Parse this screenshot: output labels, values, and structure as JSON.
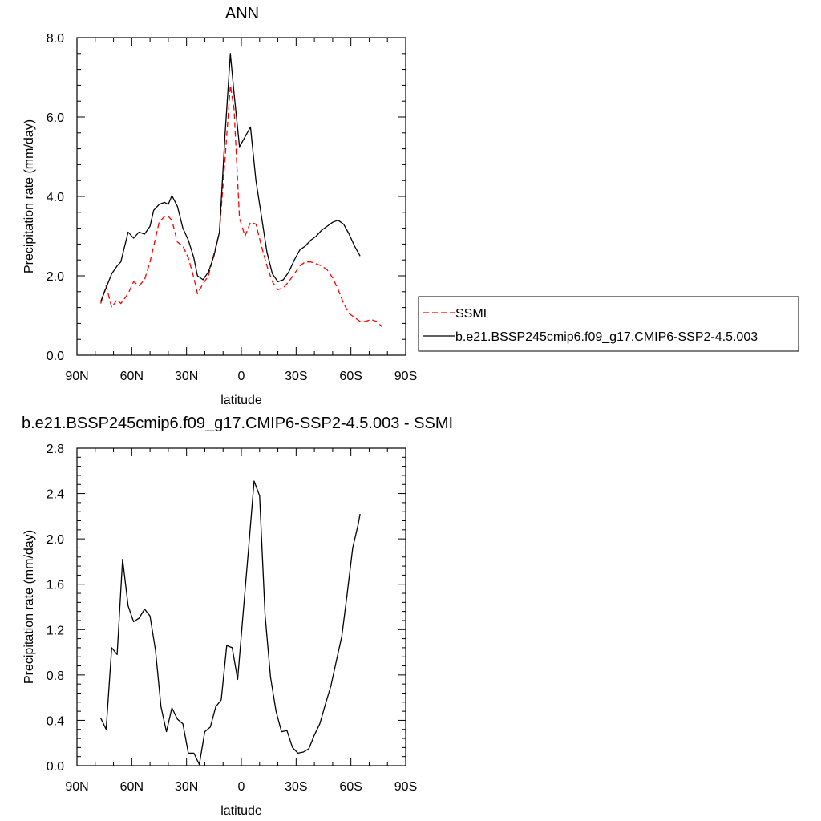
{
  "chart_data": [
    {
      "type": "line",
      "title": "ANN",
      "xlabel": "latitude",
      "ylabel": "Precipitation rate (mm/day)",
      "xlim": [
        90,
        -90
      ],
      "ylim": [
        0,
        8
      ],
      "xticks": [
        90,
        60,
        30,
        0,
        -30,
        -60,
        -90
      ],
      "xtick_labels": [
        "90N",
        "60N",
        "30N",
        "0",
        "30S",
        "60S",
        "90S"
      ],
      "yticks": [
        0,
        2,
        4,
        6,
        8
      ],
      "ytick_labels": [
        "0.0",
        "2.0",
        "4.0",
        "6.0",
        "8.0"
      ],
      "grid": false,
      "legend_position": "right",
      "series": [
        {
          "name": "SSMI",
          "color": "#ff0000",
          "dash": "dashed",
          "x": [
            77,
            74,
            71,
            68,
            66,
            62,
            59,
            56,
            53,
            50,
            48,
            45,
            42,
            40,
            38,
            35,
            32,
            29,
            26,
            24,
            21,
            18,
            15,
            12,
            9,
            6,
            4,
            1,
            -2,
            -5,
            -8,
            -11,
            -14,
            -17,
            -20,
            -23,
            -26,
            -29,
            -32,
            -35,
            -38,
            -41,
            -44,
            -47,
            -50,
            -53,
            -56,
            -59,
            -62,
            -65,
            -68,
            -71,
            -74,
            -77
          ],
          "y": [
            1.3,
            1.75,
            1.2,
            1.4,
            1.3,
            1.55,
            1.85,
            1.75,
            1.9,
            2.35,
            2.75,
            3.35,
            3.5,
            3.5,
            3.4,
            2.85,
            2.75,
            2.45,
            1.95,
            1.55,
            1.8,
            2.0,
            2.55,
            3.1,
            4.9,
            6.8,
            6.2,
            3.45,
            3.0,
            3.35,
            3.3,
            2.75,
            2.25,
            1.85,
            1.65,
            1.7,
            1.85,
            2.05,
            2.25,
            2.35,
            2.35,
            2.3,
            2.25,
            2.15,
            1.95,
            1.65,
            1.3,
            1.05,
            0.95,
            0.85,
            0.85,
            0.9,
            0.85,
            0.72
          ]
        },
        {
          "name": "b.e21.BSSP245cmip6.f09_g17.CMIP6-SSP2-4.5.003",
          "color": "#000000",
          "dash": "solid",
          "x": [
            77,
            74,
            71,
            68,
            66,
            62,
            59,
            56,
            53,
            50,
            48,
            45,
            42,
            40,
            38,
            35,
            32,
            29,
            26,
            24,
            21,
            18,
            15,
            12,
            9,
            6,
            4,
            1,
            -2,
            -5,
            -8,
            -11,
            -14,
            -17,
            -20,
            -23,
            -26,
            -29,
            -32,
            -35,
            -38,
            -41,
            -44,
            -47,
            -50,
            -53,
            -56,
            -59,
            -62,
            -65
          ],
          "y": [
            1.35,
            1.7,
            2.05,
            2.25,
            2.35,
            3.1,
            2.95,
            3.1,
            3.05,
            3.25,
            3.65,
            3.8,
            3.85,
            3.8,
            4.02,
            3.75,
            3.2,
            2.9,
            2.45,
            2.0,
            1.9,
            2.1,
            2.5,
            3.1,
            5.5,
            7.6,
            6.6,
            5.25,
            5.5,
            5.75,
            4.4,
            3.5,
            2.6,
            2.05,
            1.85,
            1.9,
            2.1,
            2.4,
            2.65,
            2.75,
            2.9,
            3.0,
            3.15,
            3.25,
            3.35,
            3.4,
            3.3,
            3.05,
            2.75,
            2.5
          ]
        }
      ]
    },
    {
      "type": "line",
      "title": "b.e21.BSSP245cmip6.f09_g17.CMIP6-SSP2-4.5.003 - SSMI",
      "xlabel": "latitude",
      "ylabel": "Precipitation rate (mm/day)",
      "xlim": [
        90,
        -90
      ],
      "ylim": [
        0,
        2.8
      ],
      "xticks": [
        90,
        60,
        30,
        0,
        -30,
        -60,
        -90
      ],
      "xtick_labels": [
        "90N",
        "60N",
        "30N",
        "0",
        "30S",
        "60S",
        "90S"
      ],
      "yticks": [
        0,
        0.4,
        0.8,
        1.2,
        1.6,
        2.0,
        2.4,
        2.8
      ],
      "ytick_labels": [
        "0.0",
        "0.4",
        "0.8",
        "1.2",
        "1.6",
        "2.0",
        "2.4",
        "2.8"
      ],
      "grid": false,
      "series": [
        {
          "color": "#000000",
          "dash": "solid",
          "x": [
            77,
            74,
            71,
            68,
            65,
            62,
            59,
            56,
            53,
            50,
            47,
            44,
            41,
            38,
            35,
            32,
            29,
            26,
            23,
            20,
            17,
            14,
            11,
            8,
            5,
            2,
            -1,
            -4,
            -7,
            -10,
            -13,
            -16,
            -19,
            -22,
            -25,
            -28,
            -31,
            -34,
            -37,
            -40,
            -43,
            -46,
            -49,
            -52,
            -55,
            -58,
            -61,
            -64,
            -65
          ],
          "y": [
            0.42,
            0.32,
            1.04,
            0.98,
            1.82,
            1.41,
            1.27,
            1.3,
            1.38,
            1.32,
            1.02,
            0.52,
            0.3,
            0.51,
            0.41,
            0.37,
            0.11,
            0.11,
            0.01,
            0.3,
            0.34,
            0.52,
            0.58,
            1.06,
            1.04,
            0.76,
            1.35,
            1.92,
            2.51,
            2.38,
            1.33,
            0.78,
            0.48,
            0.3,
            0.31,
            0.16,
            0.11,
            0.12,
            0.15,
            0.27,
            0.37,
            0.54,
            0.7,
            0.92,
            1.14,
            1.52,
            1.92,
            2.13,
            2.22
          ]
        }
      ]
    }
  ]
}
